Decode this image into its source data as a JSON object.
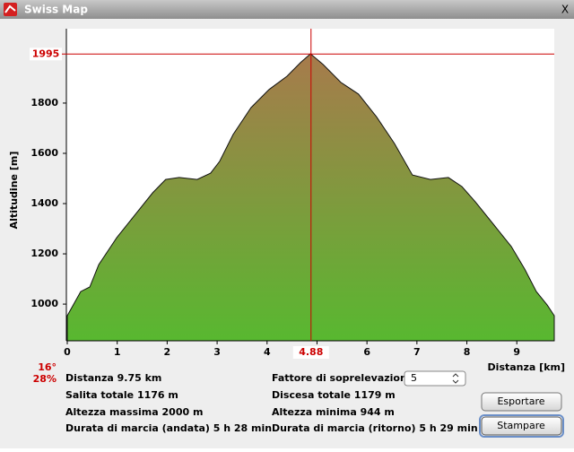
{
  "window": {
    "title": "Swiss Map",
    "close": "X"
  },
  "chart_data": {
    "type": "area",
    "y_label": "Altitudine [m]",
    "x_label": "Distanza [km]",
    "x": [
      0,
      0.27,
      0.45,
      0.63,
      0.99,
      1.35,
      1.71,
      1.97,
      2.24,
      2.6,
      2.87,
      3.05,
      3.32,
      3.68,
      4.04,
      4.4,
      4.67,
      4.87,
      5.12,
      5.48,
      5.83,
      6.19,
      6.55,
      6.91,
      7.27,
      7.63,
      7.9,
      8.17,
      8.53,
      8.89,
      9.16,
      9.39,
      9.61,
      9.75
    ],
    "series": [
      {
        "name": "Altitudine",
        "color_top": "#a87a4c",
        "color_bottom": "#58b830",
        "values": [
          954,
          1050,
          1068,
          1157,
          1264,
          1354,
          1443,
          1496,
          1504,
          1496,
          1521,
          1568,
          1675,
          1782,
          1854,
          1907,
          1961,
          1996,
          1954,
          1882,
          1836,
          1746,
          1639,
          1514,
          1496,
          1504,
          1468,
          1407,
          1318,
          1229,
          1139,
          1050,
          996,
          954
        ]
      }
    ],
    "xlim": [
      0,
      9.75
    ],
    "ylim": [
      854,
      2096
    ],
    "xticks": [
      0,
      1,
      2,
      3,
      4,
      5,
      6,
      7,
      8,
      9
    ],
    "yticks": [
      1000,
      1200,
      1400,
      1600,
      1800
    ],
    "cursor": {
      "x": 4.88,
      "y": 1995,
      "color": "#cc0000"
    }
  },
  "slope": {
    "degrees": "16°",
    "percent": "28%"
  },
  "info_left": [
    "Distanza 9.75 km",
    "Salita totale  1176 m",
    "Altezza massima  2000 m",
    "Durata di marcia (andata)  5 h 28 min"
  ],
  "info_right": [
    "Fattore di soprelevazione",
    "Discesa totale  1179 m",
    "Altezza minima  944 m",
    "Durata di marcia (ritorno)  5 h 29 min"
  ],
  "exaggeration": "5",
  "buttons": [
    "Esportare",
    "Stampare"
  ]
}
